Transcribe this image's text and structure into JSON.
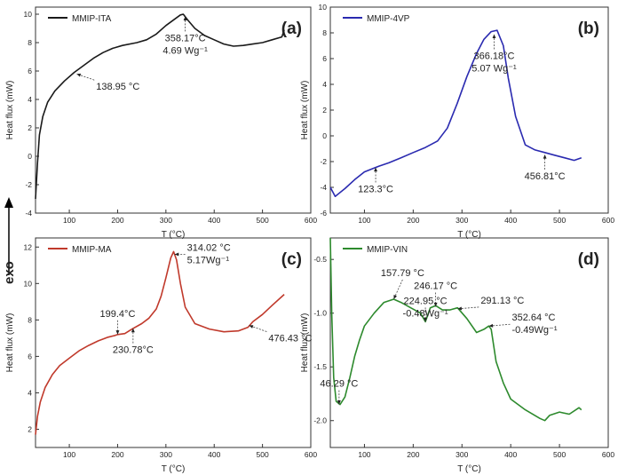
{
  "figure": {
    "exo_label": "exo"
  },
  "chart_data": [
    {
      "type": "line",
      "panel": "(a)",
      "series": [
        {
          "name": "MMIP-ITA",
          "color": "#1a1a1a",
          "x": [
            30,
            34,
            38,
            45,
            55,
            70,
            90,
            110,
            130,
            150,
            170,
            190,
            210,
            240,
            260,
            280,
            300,
            320,
            330,
            336,
            345,
            360,
            380,
            400,
            420,
            440,
            460,
            480,
            500,
            520,
            540,
            545
          ],
          "y": [
            -3,
            -0.5,
            1.5,
            2.8,
            3.8,
            4.6,
            5.3,
            5.9,
            6.4,
            6.9,
            7.3,
            7.6,
            7.8,
            8.0,
            8.2,
            8.6,
            9.2,
            9.7,
            9.95,
            10.0,
            9.6,
            9.0,
            8.5,
            8.2,
            7.9,
            7.75,
            7.8,
            7.9,
            8.0,
            8.2,
            8.4,
            8.9
          ]
        }
      ],
      "xlabel": "T (°C)",
      "ylabel": "Heat flux (mW)",
      "xlim": [
        30,
        600
      ],
      "ylim": [
        -4,
        10.5
      ],
      "xticks": [
        100,
        200,
        300,
        400,
        500,
        600
      ],
      "yticks": [
        -4,
        -2,
        0,
        2,
        4,
        6,
        8,
        10
      ],
      "legend_position": "top-left",
      "annotations": [
        {
          "lines": [
            "138.95 °C"
          ],
          "point": [
            115,
            5.8
          ],
          "dir": "down-right"
        },
        {
          "lines": [
            "358.17°C",
            "4.69 Wg⁻¹"
          ],
          "point": [
            340,
            9.85
          ],
          "dir": "down"
        }
      ]
    },
    {
      "type": "line",
      "panel": "(b)",
      "series": [
        {
          "name": "MMIP-4VP",
          "color": "#2a2ab0",
          "x": [
            30,
            40,
            60,
            80,
            100,
            120,
            130,
            150,
            175,
            200,
            225,
            250,
            270,
            290,
            310,
            330,
            345,
            360,
            372,
            385,
            395,
            410,
            430,
            450,
            470,
            490,
            510,
            530,
            545
          ],
          "y": [
            -4.0,
            -4.7,
            -4.1,
            -3.4,
            -2.8,
            -2.5,
            -2.35,
            -2.1,
            -1.7,
            -1.3,
            -0.9,
            -0.4,
            0.6,
            2.5,
            4.6,
            6.4,
            7.5,
            8.1,
            8.2,
            7.0,
            4.5,
            1.5,
            -0.7,
            -1.1,
            -1.3,
            -1.5,
            -1.7,
            -1.9,
            -1.7
          ]
        }
      ],
      "xlabel": "T (°C)",
      "ylabel": "Heat flux (mW)",
      "xlim": [
        30,
        600
      ],
      "ylim": [
        -6,
        10
      ],
      "xticks": [
        100,
        200,
        300,
        400,
        500,
        600
      ],
      "yticks": [
        -6,
        -4,
        -2,
        0,
        2,
        4,
        6,
        8,
        10
      ],
      "legend_position": "top-left",
      "annotations": [
        {
          "lines": [
            "123.3°C"
          ],
          "point": [
            123,
            -2.45
          ],
          "dir": "down"
        },
        {
          "lines": [
            "366.18°C",
            "5.07 Wg⁻¹"
          ],
          "point": [
            366,
            7.9
          ],
          "dir": "down"
        },
        {
          "lines": [
            "456.81°C"
          ],
          "point": [
            470,
            -1.45
          ],
          "dir": "down"
        }
      ]
    },
    {
      "type": "line",
      "panel": "(c)",
      "series": [
        {
          "name": "MMIP-MA",
          "color": "#c0392b",
          "x": [
            30,
            34,
            40,
            50,
            65,
            80,
            100,
            120,
            140,
            160,
            180,
            195,
            200,
            215,
            230,
            250,
            265,
            280,
            290,
            300,
            310,
            316,
            322,
            330,
            340,
            360,
            390,
            420,
            450,
            470,
            480,
            500,
            520,
            545
          ],
          "y": [
            1.7,
            2.7,
            3.5,
            4.3,
            5.0,
            5.5,
            5.9,
            6.3,
            6.6,
            6.85,
            7.05,
            7.15,
            7.2,
            7.25,
            7.5,
            7.8,
            8.1,
            8.6,
            9.3,
            10.3,
            11.4,
            11.75,
            11.3,
            10.0,
            8.7,
            7.8,
            7.5,
            7.35,
            7.4,
            7.6,
            7.9,
            8.3,
            8.8,
            9.4
          ]
        }
      ],
      "xlabel": "T (°C)",
      "ylabel": "Heat flux (mW)",
      "xlim": [
        30,
        600
      ],
      "ylim": [
        1,
        12.5
      ],
      "xticks": [
        100,
        200,
        300,
        400,
        500,
        600
      ],
      "yticks": [
        2,
        4,
        6,
        8,
        10,
        12
      ],
      "legend_position": "top-left",
      "annotations": [
        {
          "lines": [
            "230.78°C"
          ],
          "point": [
            232,
            7.55
          ],
          "dir": "down"
        },
        {
          "lines": [
            "199.4°C"
          ],
          "point": [
            200,
            7.2
          ],
          "dir": "up"
        },
        {
          "lines": [
            "314.02 °C",
            "5.17Wg⁻¹"
          ],
          "point": [
            318,
            11.6
          ],
          "dir": "right"
        },
        {
          "lines": [
            "476.43 °C"
          ],
          "point": [
            472,
            7.7
          ],
          "dir": "down-right"
        }
      ]
    },
    {
      "type": "line",
      "panel": "(d)",
      "series": [
        {
          "name": "MMIP-VIN",
          "color": "#2d8a2d",
          "x": [
            30,
            33,
            37,
            42,
            50,
            60,
            70,
            80,
            90,
            100,
            120,
            140,
            160,
            175,
            195,
            215,
            225,
            235,
            246,
            260,
            275,
            291,
            310,
            330,
            345,
            355,
            360,
            370,
            385,
            400,
            430,
            460,
            470,
            480,
            500,
            520,
            540,
            545
          ],
          "y": [
            -0.3,
            -1.0,
            -1.6,
            -1.82,
            -1.85,
            -1.78,
            -1.6,
            -1.4,
            -1.25,
            -1.12,
            -1.0,
            -0.9,
            -0.87,
            -0.9,
            -0.95,
            -1.0,
            -1.08,
            -0.95,
            -0.93,
            -0.97,
            -0.97,
            -0.95,
            -1.05,
            -1.18,
            -1.15,
            -1.12,
            -1.15,
            -1.45,
            -1.65,
            -1.8,
            -1.9,
            -1.98,
            -2.0,
            -1.95,
            -1.92,
            -1.94,
            -1.88,
            -1.9
          ]
        }
      ],
      "xlabel": "T (°C)",
      "ylabel": "Heat flux (mW)",
      "xlim": [
        30,
        600
      ],
      "ylim": [
        -2.25,
        -0.3
      ],
      "xticks": [
        100,
        200,
        300,
        400,
        500,
        600
      ],
      "yticks": [
        -2.0,
        -1.5,
        -1.0,
        -0.5
      ],
      "legend_position": "top-left",
      "annotations": [
        {
          "lines": [
            "157.79 °C"
          ],
          "point": [
            160,
            -0.87
          ],
          "dir": "up-right"
        },
        {
          "lines": [
            "246.17 °C"
          ],
          "point": [
            246,
            -0.94
          ],
          "dir": "up"
        },
        {
          "lines": [
            "291.13 °C"
          ],
          "point": [
            291,
            -0.96
          ],
          "dir": "left"
        },
        {
          "lines": [
            "224.95 °C",
            "-0.48Wg⁻¹"
          ],
          "point": [
            225,
            -1.08
          ],
          "dir": "up"
        },
        {
          "lines": [
            "352.64 °C",
            "-0.49Wg⁻¹"
          ],
          "point": [
            355,
            -1.12
          ],
          "dir": "left"
        },
        {
          "lines": [
            "46.29 °C"
          ],
          "point": [
            48,
            -1.85
          ],
          "dir": "up"
        }
      ]
    }
  ]
}
